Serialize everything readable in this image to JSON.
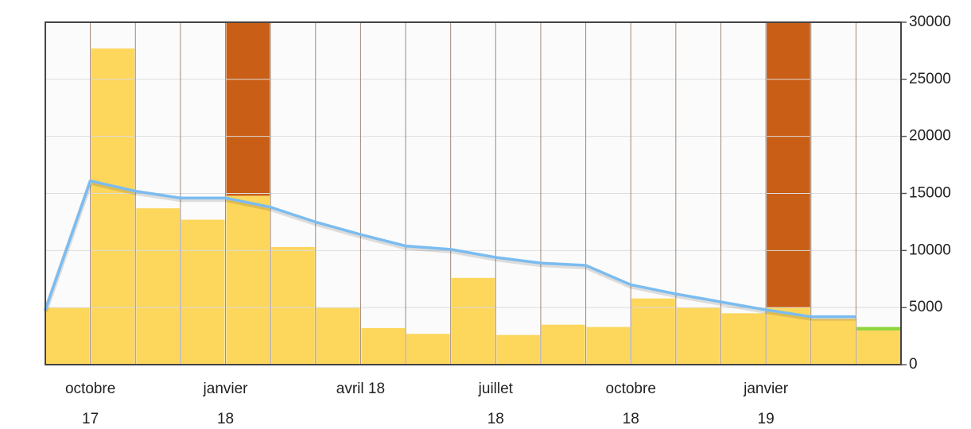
{
  "chart_data": {
    "type": "bar",
    "categories": [
      null,
      "octobre\n17",
      null,
      null,
      "janvier\n18",
      null,
      null,
      "avril 18",
      null,
      null,
      "juillet\n18",
      null,
      null,
      "octobre\n18",
      null,
      null,
      "janvier\n19",
      null,
      null
    ],
    "series": [
      {
        "color": "#fdd24a",
        "values": [
          5000,
          27700,
          13700,
          12700,
          14800,
          10300,
          5000,
          3200,
          2700,
          7600,
          2600,
          3500,
          3300,
          5800,
          5000,
          4500,
          5000,
          4000,
          3000
        ]
      },
      {
        "color": "#c95e16",
        "values": [
          0,
          0,
          0,
          0,
          15200,
          0,
          0,
          0,
          0,
          0,
          0,
          0,
          0,
          0,
          0,
          0,
          25000,
          0,
          0
        ]
      },
      {
        "color": "#8ed43a",
        "values": [
          0,
          0,
          0,
          0,
          0,
          0,
          0,
          0,
          0,
          0,
          0,
          0,
          0,
          0,
          0,
          0,
          0,
          0,
          300
        ]
      },
      {
        "type": "line",
        "color": "#7bbcf0",
        "values": [
          4800,
          16100,
          15200,
          14600,
          14600,
          13800,
          12500,
          11400,
          10400,
          10100,
          9400,
          8900,
          8700,
          7000,
          6200,
          5500,
          4800,
          4200,
          4200
        ]
      }
    ],
    "ylim": [
      0,
      30000
    ],
    "yticks": [
      0,
      5000,
      10000,
      15000,
      20000,
      25000,
      30000
    ],
    "grid": true,
    "stacked": true
  }
}
